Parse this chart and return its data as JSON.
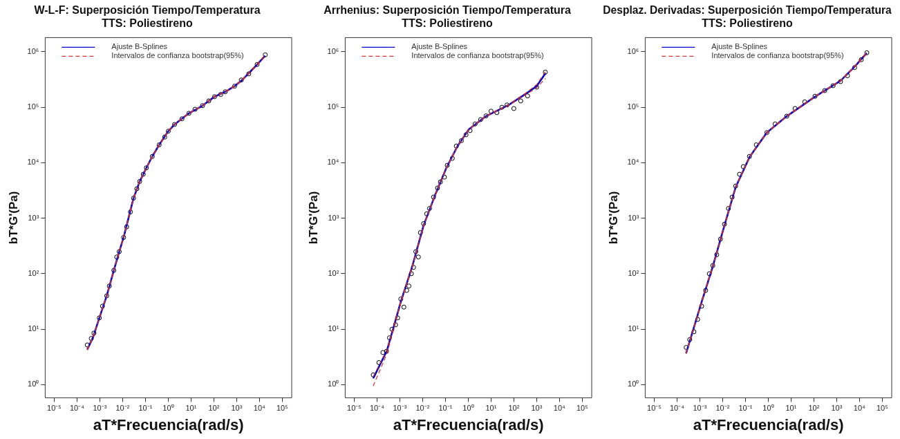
{
  "chart_data": [
    {
      "type": "scatter",
      "title": "W-L-F: Superposición Tiempo/Temperatura",
      "subtitle": "TTS: Poliestireno",
      "xlabel": "aT*Frecuencia(rad/s)",
      "ylabel": "bT*G'(Pa)",
      "log": "xy",
      "grid": false,
      "legend": "top left",
      "xlim": [
        4e-06,
        260000.0
      ],
      "ylim": [
        0.58,
        1800000.0
      ],
      "xticks": [
        {
          "value": 1e-05,
          "label": "10⁻⁵"
        },
        {
          "value": 0.0001,
          "label": "10⁻⁴"
        },
        {
          "value": 0.001,
          "label": "10⁻³"
        },
        {
          "value": 0.01,
          "label": "10⁻²"
        },
        {
          "value": 0.1,
          "label": "10⁻¹"
        },
        {
          "value": 1,
          "label": "10⁰"
        },
        {
          "value": 10,
          "label": "10¹"
        },
        {
          "value": 100,
          "label": "10²"
        },
        {
          "value": 1000,
          "label": "10³"
        },
        {
          "value": 10000,
          "label": "10⁴"
        },
        {
          "value": 100000,
          "label": "10⁵"
        }
      ],
      "yticks": [
        {
          "value": 1,
          "label": "10⁰"
        },
        {
          "value": 10,
          "label": "10¹"
        },
        {
          "value": 100,
          "label": "10²"
        },
        {
          "value": 1000,
          "label": "10³"
        },
        {
          "value": 10000,
          "label": "10⁴"
        },
        {
          "value": 100000,
          "label": "10⁵"
        },
        {
          "value": 1000000,
          "label": "10⁶"
        }
      ],
      "series": [
        {
          "type": "scatter",
          "color": "#000000",
          "marker": "circle",
          "x": [
            0.00028,
            0.00042,
            0.00055,
            0.00095,
            0.0013,
            0.002,
            0.0026,
            0.0041,
            0.0055,
            0.0071,
            0.011,
            0.015,
            0.022,
            0.03,
            0.042,
            0.056,
            0.08,
            0.11,
            0.2,
            0.4,
            0.7,
            1,
            1.9,
            4,
            8.1,
            15,
            32,
            60,
            107,
            200,
            316,
            813,
            1600,
            3400,
            7900,
            18000
          ],
          "values": [
            5.2,
            6.8,
            8.5,
            16,
            26,
            40,
            60,
            115,
            200,
            250,
            450,
            700,
            1300,
            2300,
            3400,
            4600,
            6200,
            8100,
            13000,
            21000,
            29000,
            37000,
            49000,
            62000,
            78000,
            92000,
            107000,
            130000,
            155000,
            170000,
            190000,
            240000,
            310000,
            400000,
            590000,
            880000
          ]
        },
        {
          "type": "line",
          "name": "Ajuste B-Splines",
          "color": "#0000cc",
          "line_style": "solid",
          "x": [
            0.00028,
            0.0005,
            0.00095,
            0.002,
            0.0041,
            0.0071,
            0.011,
            0.018,
            0.03,
            0.056,
            0.11,
            0.2,
            0.4,
            1,
            1.9,
            8.1,
            32,
            107,
            316,
            810,
            1600,
            3400,
            7900,
            17800
          ],
          "values": [
            4.3,
            7.1,
            16,
            40,
            115,
            250,
            450,
            1000,
            2300,
            4600,
            8100,
            13000,
            21000,
            37000,
            49000,
            78000,
            107000,
            155000,
            190000,
            240000,
            300000,
            410000,
            590000,
            850000
          ]
        },
        {
          "type": "line",
          "name": "Intervalos de confianza bootstrap(95%)",
          "color": "#cc3333",
          "line_style": "dashed",
          "x": [
            0.00028,
            0.0005,
            0.00095,
            0.002,
            0.0041,
            0.0071,
            0.011,
            0.018,
            0.03,
            0.056,
            0.11,
            0.2,
            0.4,
            1,
            1.9,
            8.1,
            32,
            107,
            316,
            810,
            1600,
            3400,
            7900,
            17800
          ],
          "values": [
            4.4,
            7.2,
            16,
            41,
            117,
            255,
            460,
            1020,
            2350,
            4700,
            8200,
            13200,
            21300,
            37500,
            49500,
            79000,
            108000,
            157000,
            193000,
            245000,
            306000,
            420000,
            610000,
            880000
          ]
        },
        {
          "type": "line",
          "color": "#cc3333",
          "line_style": "dashed",
          "x": [
            0.00028,
            0.0005,
            0.00095,
            0.002,
            0.0041,
            0.0071,
            0.011,
            0.018,
            0.03,
            0.056,
            0.11,
            0.2,
            0.4,
            1,
            1.9,
            8.1,
            32,
            107,
            316,
            810,
            1600,
            3400,
            7900,
            17800
          ],
          "values": [
            4.2,
            7.0,
            16,
            39,
            113,
            245,
            440,
            980,
            2250,
            4500,
            8000,
            12800,
            20700,
            36500,
            48500,
            77000,
            106000,
            153000,
            187000,
            235000,
            294000,
            400000,
            570000,
            820000
          ]
        }
      ]
    },
    {
      "type": "scatter",
      "title": "Arrhenius: Superposición Tiempo/Temperatura",
      "subtitle": "TTS: Poliestireno",
      "xlabel": "aT*Frecuencia(rad/s)",
      "ylabel": "bT*G'(Pa)",
      "log": "xy",
      "grid": false,
      "legend": "top left",
      "xlim": [
        4e-06,
        260000.0
      ],
      "ylim": [
        0.58,
        1800000.0
      ],
      "xticks": [
        {
          "value": 1e-05,
          "label": "10⁻⁵"
        },
        {
          "value": 0.0001,
          "label": "10⁻⁴"
        },
        {
          "value": 0.001,
          "label": "10⁻³"
        },
        {
          "value": 0.01,
          "label": "10⁻²"
        },
        {
          "value": 0.1,
          "label": "10⁻¹"
        },
        {
          "value": 1,
          "label": "10⁰"
        },
        {
          "value": 10,
          "label": "10¹"
        },
        {
          "value": 100,
          "label": "10²"
        },
        {
          "value": 1000,
          "label": "10³"
        },
        {
          "value": 10000,
          "label": "10⁴"
        },
        {
          "value": 100000,
          "label": "10⁵"
        }
      ],
      "yticks": [
        {
          "value": 1,
          "label": "10⁰"
        },
        {
          "value": 10,
          "label": "10¹"
        },
        {
          "value": 100,
          "label": "10²"
        },
        {
          "value": 1000,
          "label": "10³"
        },
        {
          "value": 10000,
          "label": "10⁴"
        },
        {
          "value": 100000,
          "label": "10⁵"
        },
        {
          "value": 1000000,
          "label": "10⁶"
        }
      ],
      "series": [
        {
          "type": "scatter",
          "color": "#000000",
          "marker": "circle",
          "x": [
            6.8e-05,
            0.00012,
            0.00018,
            0.00026,
            0.00035,
            0.00045,
            0.00065,
            0.0008,
            0.0011,
            0.0015,
            0.002,
            0.0025,
            0.0032,
            0.004,
            0.005,
            0.0065,
            0.008,
            0.011,
            0.015,
            0.02,
            0.03,
            0.045,
            0.06,
            0.09,
            0.12,
            0.2,
            0.3,
            0.5,
            0.8,
            1.2,
            2,
            3.5,
            6,
            10,
            18,
            30,
            50,
            100,
            200,
            400,
            1000,
            2400
          ],
          "values": [
            1.5,
            2.5,
            3.8,
            4,
            7,
            10,
            12,
            16,
            35,
            25,
            50,
            60,
            100,
            130,
            250,
            200,
            550,
            800,
            1200,
            1500,
            2400,
            3500,
            4500,
            5500,
            9000,
            12000,
            20000,
            25000,
            32000,
            38000,
            50000,
            60000,
            70000,
            85000,
            80000,
            100000,
            110000,
            95000,
            130000,
            160000,
            230000,
            430000
          ]
        },
        {
          "type": "line",
          "name": "Ajuste B-Splines",
          "color": "#0000cc",
          "line_style": "solid",
          "x": [
            6.8e-05,
            0.00027,
            0.0011,
            0.0035,
            0.011,
            0.035,
            0.11,
            0.34,
            1.07,
            6.0,
            59,
            330,
            1000,
            2450
          ],
          "values": [
            1.3,
            4.1,
            31,
            135,
            740,
            2600,
            8100,
            20000,
            40000,
            69000,
            110000,
            174000,
            240000,
            410000
          ]
        },
        {
          "type": "line",
          "name": "Intervalos de confianza bootstrap(95%)",
          "color": "#cc3333",
          "line_style": "dashed",
          "x": [
            6.8e-05,
            0.00027,
            0.0011,
            0.0035,
            0.011,
            0.035,
            0.11,
            0.34,
            1.07,
            6.0,
            59,
            330,
            1000,
            2450
          ],
          "values": [
            1.4,
            4.2,
            32,
            138,
            750,
            2650,
            8200,
            20300,
            40500,
            70000,
            112000,
            180000,
            255000,
            440000
          ]
        },
        {
          "type": "line",
          "color": "#cc3333",
          "line_style": "dashed",
          "x": [
            6.8e-05,
            0.00027,
            0.0011,
            0.0035,
            0.011,
            0.035,
            0.11,
            0.34,
            1.07,
            6.0,
            59,
            330,
            1000,
            2450
          ],
          "values": [
            0.95,
            3.6,
            29,
            130,
            720,
            2550,
            7900,
            19700,
            39500,
            68000,
            108000,
            168000,
            225000,
            330000
          ]
        }
      ]
    },
    {
      "type": "scatter",
      "title": "Desplaz. Derivadas: Superposición Tiempo/Temperatura",
      "subtitle": "TTS: Poliestireno",
      "xlabel": "aT*Frecuencia(rad/s)",
      "ylabel": "bT*G'(Pa)",
      "log": "xy",
      "grid": false,
      "legend": "top left",
      "xlim": [
        4e-06,
        260000.0
      ],
      "ylim": [
        0.58,
        1800000.0
      ],
      "xticks": [
        {
          "value": 1e-05,
          "label": "10⁻⁵"
        },
        {
          "value": 0.0001,
          "label": "10⁻⁴"
        },
        {
          "value": 0.001,
          "label": "10⁻³"
        },
        {
          "value": 0.01,
          "label": "10⁻²"
        },
        {
          "value": 0.1,
          "label": "10⁻¹"
        },
        {
          "value": 1,
          "label": "10⁰"
        },
        {
          "value": 10,
          "label": "10¹"
        },
        {
          "value": 100,
          "label": "10²"
        },
        {
          "value": 1000,
          "label": "10³"
        },
        {
          "value": 10000,
          "label": "10⁴"
        },
        {
          "value": 100000,
          "label": "10⁵"
        }
      ],
      "yticks": [
        {
          "value": 1,
          "label": "10⁰"
        },
        {
          "value": 10,
          "label": "10¹"
        },
        {
          "value": 100,
          "label": "10²"
        },
        {
          "value": 1000,
          "label": "10³"
        },
        {
          "value": 10000,
          "label": "10⁴"
        },
        {
          "value": 100000,
          "label": "10⁵"
        },
        {
          "value": 1000000,
          "label": "10⁶"
        }
      ],
      "series": [
        {
          "type": "scatter",
          "color": "#000000",
          "marker": "circle",
          "x": [
            0.00025,
            0.00036,
            0.00055,
            0.0008,
            0.0012,
            0.0018,
            0.0026,
            0.0037,
            0.0055,
            0.008,
            0.012,
            0.018,
            0.026,
            0.037,
            0.055,
            0.08,
            0.15,
            0.3,
            0.87,
            2,
            6.5,
            15,
            40,
            112,
            300,
            700,
            1480,
            3000,
            6200,
            12000,
            21000
          ],
          "values": [
            4.7,
            6.5,
            9,
            15,
            26,
            50,
            100,
            140,
            220,
            420,
            780,
            1500,
            2400,
            3800,
            6200,
            8500,
            13000,
            21000,
            35000,
            50000,
            69000,
            95000,
            125000,
            158000,
            200000,
            245000,
            290000,
            370000,
            520000,
            720000,
            960000
          ]
        },
        {
          "type": "line",
          "name": "Ajuste B-Splines",
          "color": "#0000cc",
          "line_style": "solid",
          "x": [
            0.00025,
            0.0012,
            0.0037,
            0.012,
            0.037,
            0.15,
            0.87,
            6.5,
            112,
            1480,
            6200,
            20900
          ],
          "values": [
            3.7,
            31,
            135,
            740,
            3600,
            12600,
            35000,
            69000,
            155000,
            300000,
            540000,
            950000
          ]
        },
        {
          "type": "line",
          "name": "Intervalos de confianza bootstrap(95%)",
          "color": "#cc3333",
          "line_style": "dashed",
          "x": [
            0.00025,
            0.0012,
            0.0037,
            0.012,
            0.037,
            0.15,
            0.87,
            6.5,
            112,
            1480,
            6200,
            20900
          ],
          "values": [
            3.8,
            32,
            138,
            750,
            3650,
            12800,
            35500,
            70000,
            157000,
            305000,
            550000,
            980000
          ]
        },
        {
          "type": "line",
          "color": "#cc3333",
          "line_style": "dashed",
          "x": [
            0.00025,
            0.0012,
            0.0037,
            0.012,
            0.037,
            0.15,
            0.87,
            6.5,
            112,
            1480,
            6200,
            20900
          ],
          "values": [
            3.6,
            30,
            132,
            730,
            3550,
            12400,
            34500,
            68000,
            153000,
            295000,
            530000,
            920000
          ]
        }
      ]
    }
  ]
}
